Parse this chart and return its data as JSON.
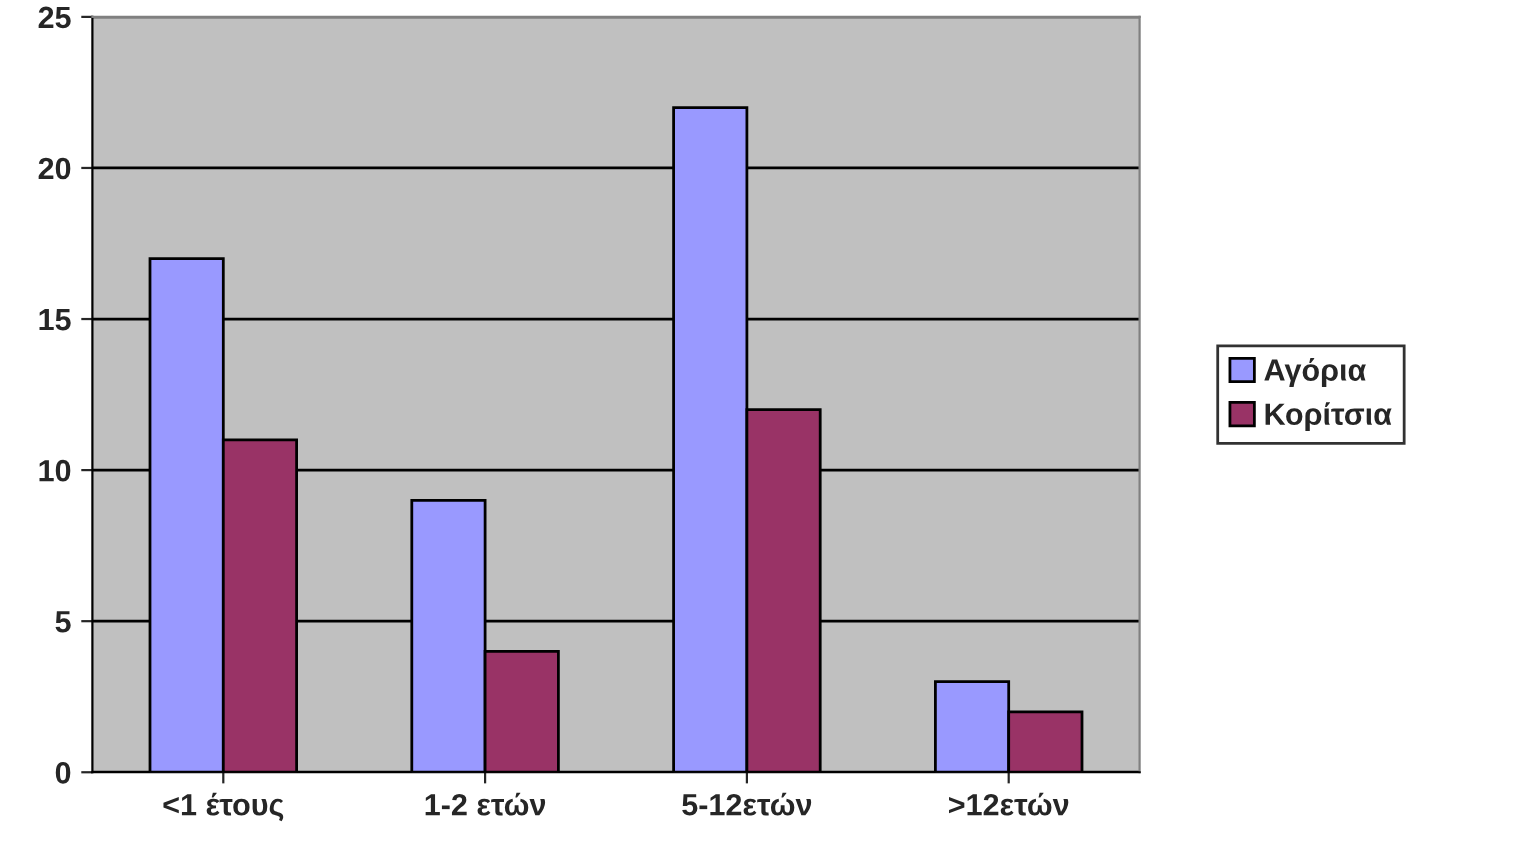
{
  "chart_data": {
    "type": "bar",
    "categories": [
      "<1 έτους",
      "1-2 ετών",
      "5-12ετών",
      ">12ετών"
    ],
    "series": [
      {
        "name": "Αγόρια",
        "color": "#9999ff",
        "values": [
          17,
          9,
          22,
          3
        ]
      },
      {
        "name": "Κορίτσια",
        "color": "#993366",
        "values": [
          11,
          4,
          12,
          2
        ]
      }
    ],
    "ylim": [
      0,
      25
    ],
    "yticks": [
      0,
      5,
      10,
      15,
      20,
      25
    ],
    "grid": "y",
    "legend": "right"
  }
}
